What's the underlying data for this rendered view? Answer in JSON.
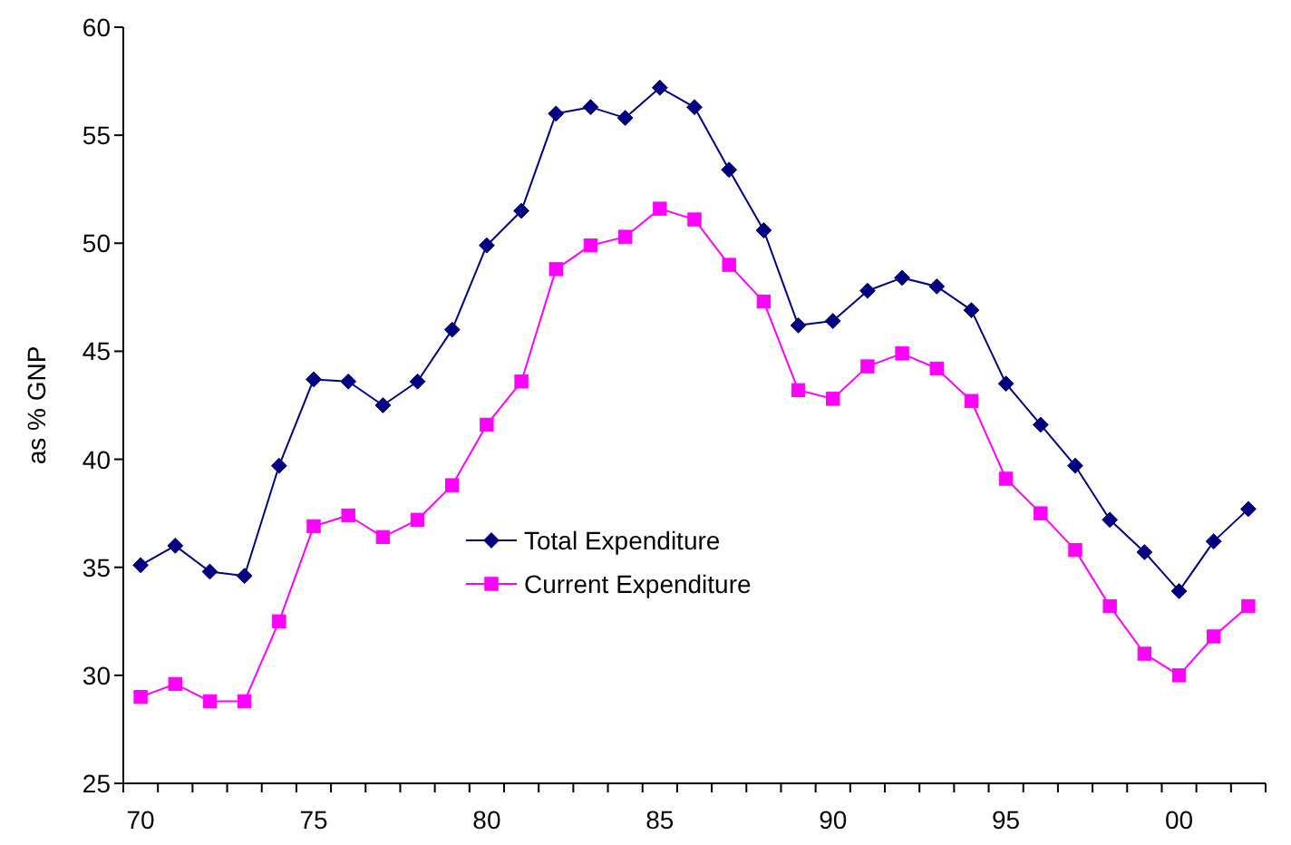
{
  "chart_data": {
    "type": "line",
    "ylabel": "as % GNP",
    "categories": [
      "70",
      null,
      null,
      null,
      null,
      "75",
      null,
      null,
      null,
      null,
      "80",
      null,
      null,
      null,
      null,
      "85",
      null,
      null,
      null,
      null,
      "90",
      null,
      null,
      null,
      null,
      "95",
      null,
      null,
      null,
      null,
      "00",
      null,
      null
    ],
    "series": [
      {
        "name": "Total Expenditure",
        "color": "#000080",
        "marker": "diamond",
        "values": [
          35.1,
          36.0,
          34.8,
          34.6,
          39.7,
          43.7,
          43.6,
          42.5,
          43.6,
          46.0,
          49.9,
          51.5,
          56.0,
          56.3,
          55.8,
          57.2,
          56.3,
          53.4,
          50.6,
          46.2,
          46.4,
          47.8,
          48.4,
          48.0,
          46.9,
          43.5,
          41.6,
          39.7,
          37.2,
          35.7,
          33.9,
          36.2,
          37.7
        ]
      },
      {
        "name": "Current Expenditure",
        "color": "#ff00ff",
        "marker": "square",
        "values": [
          29.0,
          29.6,
          28.8,
          28.8,
          32.5,
          36.9,
          37.4,
          36.4,
          37.2,
          38.8,
          41.6,
          43.6,
          48.8,
          49.9,
          50.3,
          51.6,
          51.1,
          49.0,
          47.3,
          43.2,
          42.8,
          44.3,
          44.9,
          44.2,
          42.7,
          39.1,
          37.5,
          35.8,
          33.2,
          31.0,
          30.0,
          31.8,
          33.2
        ]
      }
    ],
    "ylim": [
      25,
      60
    ],
    "yticks": [
      25,
      30,
      35,
      40,
      45,
      50,
      55,
      60
    ],
    "legend": "center"
  }
}
